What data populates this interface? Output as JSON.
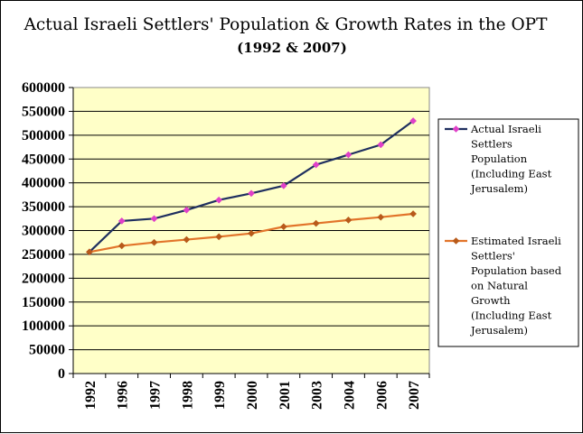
{
  "chart_data": {
    "type": "line",
    "title": "Actual Israeli Settlers' Population & Growth Rates in the OPT",
    "subtitle": "(1992 & 2007)",
    "categories": [
      "1992",
      "1996",
      "1997",
      "1998",
      "1999",
      "2000",
      "2001",
      "2003",
      "2004",
      "2006",
      "2007"
    ],
    "ylim": [
      0,
      600000
    ],
    "yticks": [
      "0",
      "50000",
      "100000",
      "150000",
      "200000",
      "250000",
      "300000",
      "350000",
      "400000",
      "450000",
      "500000",
      "550000",
      "600000"
    ],
    "grid": true,
    "legend_position": "right",
    "background_color": "#ffffc8",
    "series": [
      {
        "name": "Actual Israeli Settlers Population (Including East Jerusalem)",
        "legend_lines": [
          "Actual Israeli",
          "Settlers",
          "Population",
          "(Including East",
          "Jerusalem)"
        ],
        "values": [
          255000,
          320000,
          325000,
          343000,
          364000,
          378000,
          394000,
          438000,
          459000,
          480000,
          530000
        ],
        "line_color": "#1f2f5f",
        "marker_color": "#e040c8"
      },
      {
        "name": "Estimated Israeli Settlers' Population based on Natural Growth (Including East Jerusalem)",
        "legend_lines": [
          "Estimated Israeli",
          "Settlers'",
          "Population based",
          "on Natural",
          "Growth",
          "(Including East",
          "Jerusalem)"
        ],
        "values": [
          255000,
          268000,
          275000,
          281000,
          287000,
          294000,
          308000,
          315000,
          322000,
          328000,
          335000
        ],
        "line_color": "#e2742a",
        "marker_color": "#b85a1a"
      }
    ]
  }
}
